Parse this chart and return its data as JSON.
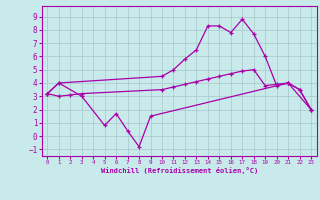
{
  "bg_color": "#c8eaea",
  "grid_color": "#a8c8c8",
  "line_color": "#aa00aa",
  "xlabel": "Windchill (Refroidissement éolien,°C)",
  "ylim": [
    -1.5,
    9.8
  ],
  "xlim": [
    -0.5,
    23.5
  ],
  "yticks": [
    -1,
    0,
    1,
    2,
    3,
    4,
    5,
    6,
    7,
    8,
    9
  ],
  "xticks": [
    0,
    1,
    2,
    3,
    4,
    5,
    6,
    7,
    8,
    9,
    10,
    11,
    12,
    13,
    14,
    15,
    16,
    17,
    18,
    19,
    20,
    21,
    22,
    23
  ],
  "zigzag_x": [
    0,
    1,
    3,
    5,
    6,
    7,
    8,
    9,
    21,
    23
  ],
  "zigzag_y": [
    3.2,
    4.0,
    3.0,
    0.8,
    1.7,
    0.4,
    -0.8,
    1.5,
    4.0,
    2.0
  ],
  "upper_x": [
    0,
    1,
    10,
    11,
    12,
    13,
    14,
    15,
    16,
    17,
    18,
    19,
    20,
    21,
    22,
    23
  ],
  "upper_y": [
    3.2,
    4.0,
    4.5,
    5.0,
    5.8,
    6.5,
    8.3,
    8.3,
    7.8,
    8.8,
    7.7,
    6.0,
    3.8,
    4.0,
    3.5,
    2.0
  ],
  "lower_x": [
    0,
    1,
    2,
    3,
    10,
    11,
    12,
    13,
    14,
    15,
    16,
    17,
    18,
    19,
    20,
    21,
    22,
    23
  ],
  "lower_y": [
    3.2,
    3.0,
    3.1,
    3.2,
    3.5,
    3.7,
    3.9,
    4.1,
    4.3,
    4.5,
    4.7,
    4.9,
    5.0,
    3.8,
    3.9,
    4.0,
    3.5,
    2.0
  ]
}
